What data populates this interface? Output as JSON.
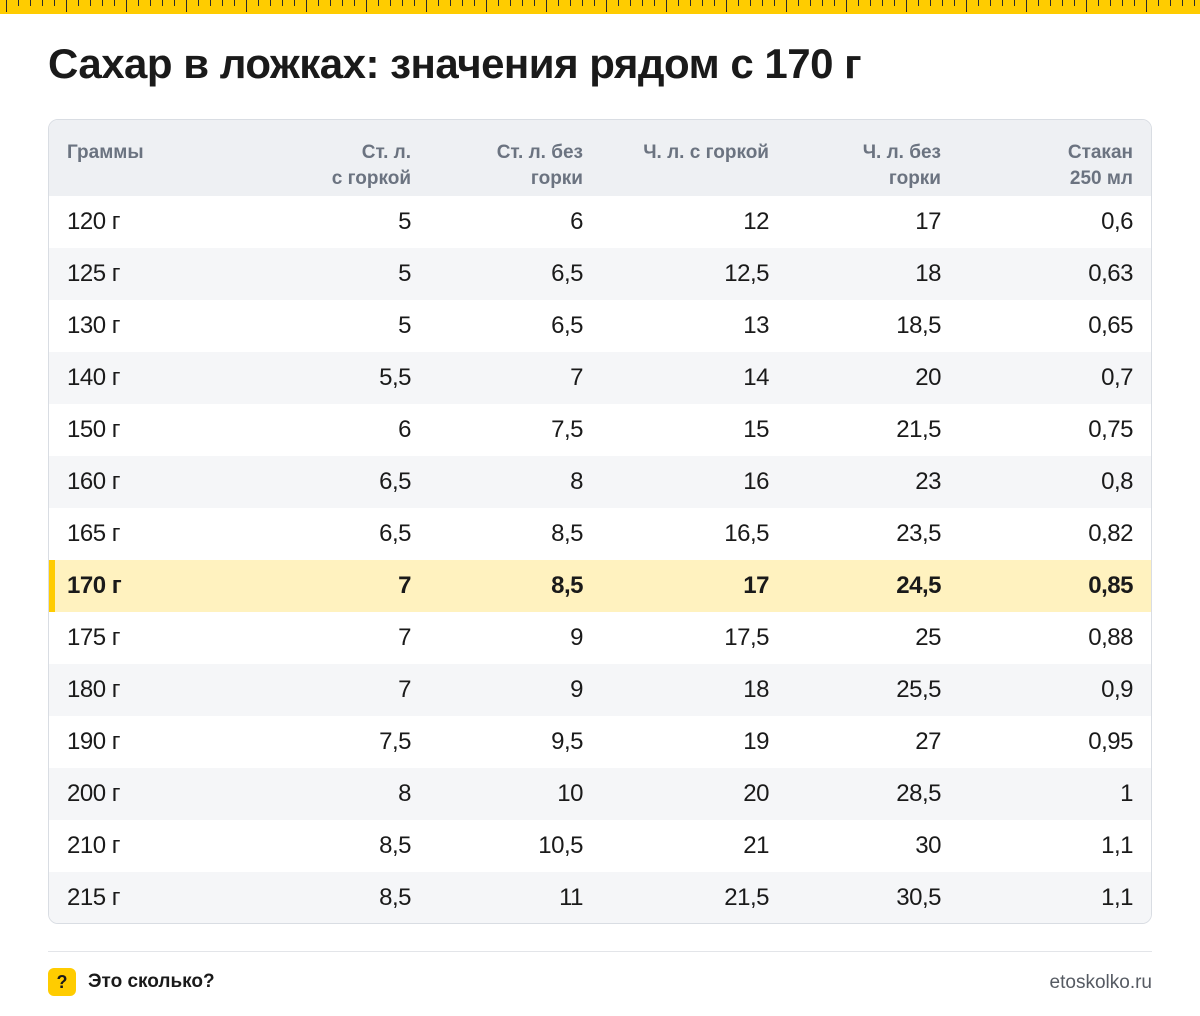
{
  "title": "Сахар в ложках: значения рядом с 170 г",
  "table": {
    "headers": [
      [
        "Граммы"
      ],
      [
        "Ст. л.",
        "с горкой"
      ],
      [
        "Ст. л. без",
        "горки"
      ],
      [
        "Ч. л. с горкой"
      ],
      [
        "Ч. л. без",
        "горки"
      ],
      [
        "Стакан",
        "250 мл"
      ]
    ],
    "highlight_row": "170 г",
    "rows": [
      [
        "120 г",
        "5",
        "6",
        "12",
        "17",
        "0,6"
      ],
      [
        "125 г",
        "5",
        "6,5",
        "12,5",
        "18",
        "0,63"
      ],
      [
        "130 г",
        "5",
        "6,5",
        "13",
        "18,5",
        "0,65"
      ],
      [
        "140 г",
        "5,5",
        "7",
        "14",
        "20",
        "0,7"
      ],
      [
        "150 г",
        "6",
        "7,5",
        "15",
        "21,5",
        "0,75"
      ],
      [
        "160 г",
        "6,5",
        "8",
        "16",
        "23",
        "0,8"
      ],
      [
        "165 г",
        "6,5",
        "8,5",
        "16,5",
        "23,5",
        "0,82"
      ],
      [
        "170 г",
        "7",
        "8,5",
        "17",
        "24,5",
        "0,85"
      ],
      [
        "175 г",
        "7",
        "9",
        "17,5",
        "25",
        "0,88"
      ],
      [
        "180 г",
        "7",
        "9",
        "18",
        "25,5",
        "0,9"
      ],
      [
        "190 г",
        "7,5",
        "9,5",
        "19",
        "27",
        "0,95"
      ],
      [
        "200 г",
        "8",
        "10",
        "20",
        "28,5",
        "1"
      ],
      [
        "210 г",
        "8,5",
        "10,5",
        "21",
        "30",
        "1,1"
      ],
      [
        "215 г",
        "8,5",
        "11",
        "21,5",
        "30,5",
        "1,1"
      ]
    ]
  },
  "footer": {
    "icon": "question-mark-icon",
    "icon_glyph": "?",
    "brand": "Это сколько?",
    "site": "etoskolko.ru"
  },
  "colors": {
    "accent": "#ffcc00",
    "highlight_bg": "#fff2bf",
    "header_bg": "#eef0f3"
  }
}
